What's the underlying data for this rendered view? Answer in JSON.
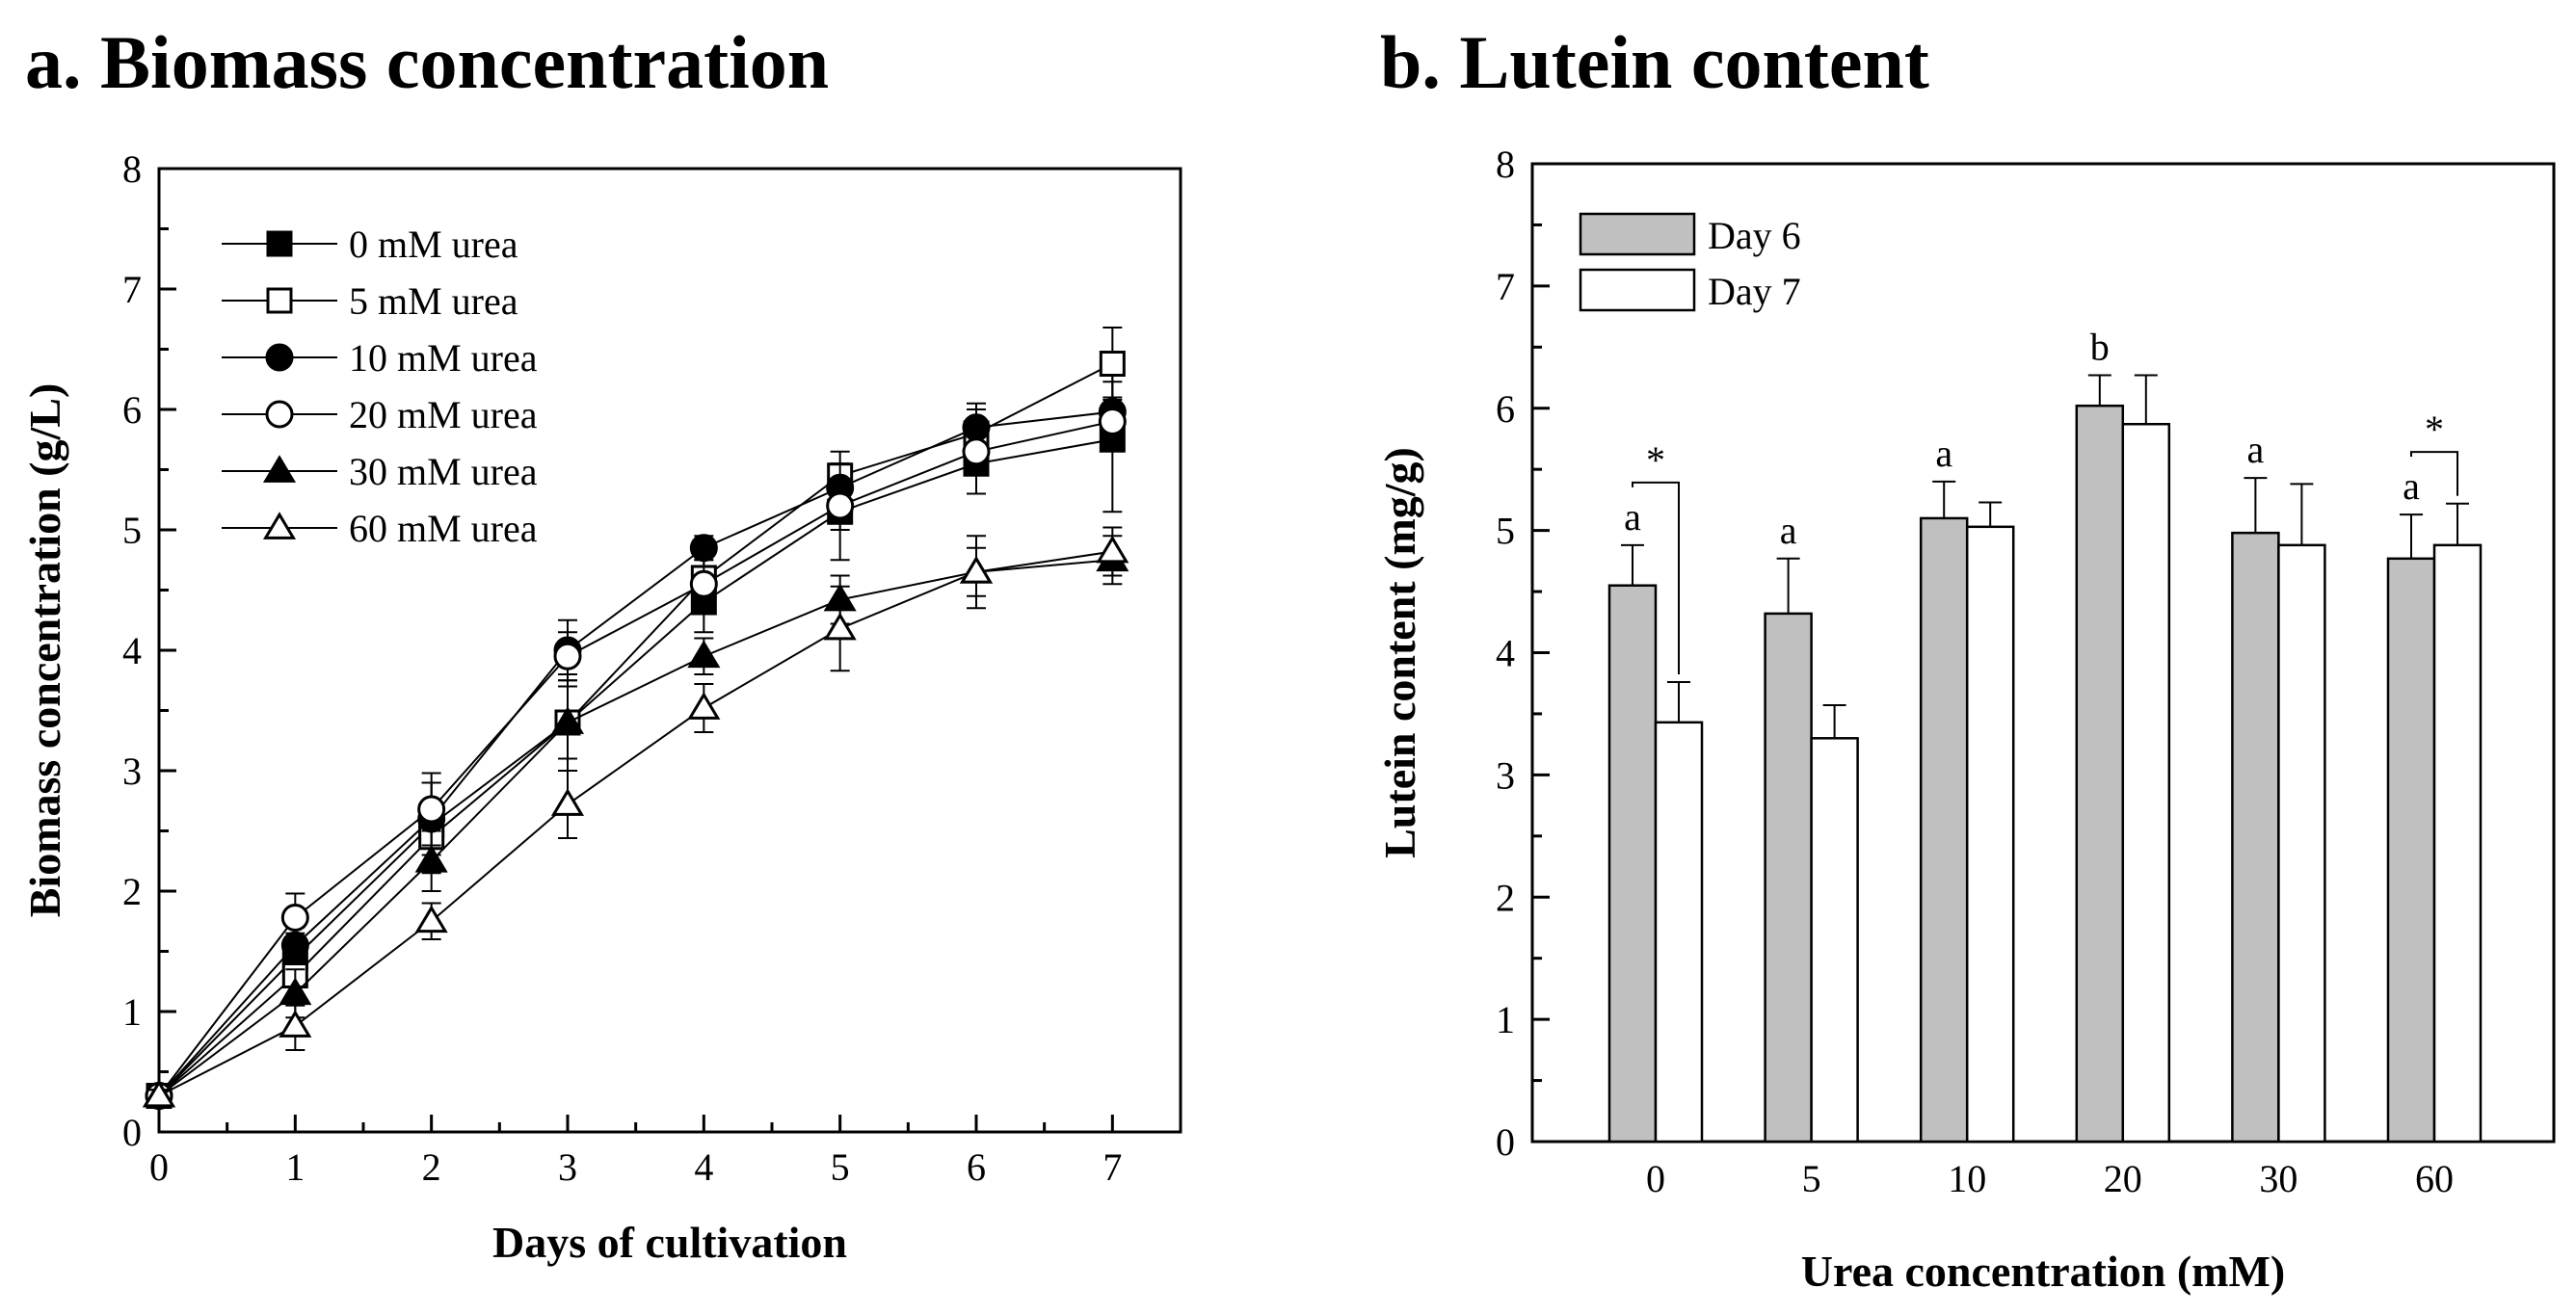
{
  "chart_data": [
    {
      "id": "a",
      "type": "line",
      "title": "a. Biomass concentration",
      "xlabel": "Days of cultivation",
      "ylabel": "Biomass concentration (g/L)",
      "xlim": [
        0,
        7.5
      ],
      "ylim": [
        0,
        8
      ],
      "xticks": [
        "0",
        "1",
        "2",
        "3",
        "4",
        "5",
        "6",
        "7"
      ],
      "yticks": [
        "0",
        "1",
        "2",
        "3",
        "4",
        "5",
        "6",
        "7",
        "8"
      ],
      "legend_position": "top-left",
      "x": [
        0,
        1,
        2,
        3,
        4,
        5,
        6,
        7
      ],
      "series": [
        {
          "name": "0 mM urea",
          "marker": "square",
          "filled": true,
          "values": [
            0.3,
            1.45,
            2.55,
            3.4,
            4.4,
            5.15,
            5.55,
            5.75
          ],
          "errors": [
            0.05,
            0.2,
            0.35,
            0.3,
            0.25,
            0.4,
            0.25,
            0.6
          ]
        },
        {
          "name": "5 mM urea",
          "marker": "square",
          "filled": false,
          "values": [
            0.3,
            1.3,
            2.45,
            3.4,
            4.6,
            5.45,
            5.8,
            6.38
          ],
          "errors": [
            0.05,
            0.25,
            0.3,
            0.4,
            0.25,
            0.2,
            0.2,
            0.3
          ]
        },
        {
          "name": "10 mM urea",
          "marker": "circle",
          "filled": true,
          "values": [
            0.3,
            1.55,
            2.6,
            4.0,
            4.85,
            5.35,
            5.85,
            5.98
          ],
          "errors": [
            0.05,
            0.15,
            0.3,
            0.25,
            0.1,
            0.2,
            0.2,
            0.25
          ]
        },
        {
          "name": "20 mM urea",
          "marker": "circle",
          "filled": false,
          "values": [
            0.3,
            1.78,
            2.68,
            3.95,
            4.55,
            5.2,
            5.65,
            5.9
          ],
          "errors": [
            0.05,
            0.2,
            0.3,
            0.2,
            0.2,
            0.2,
            0.15,
            0.2
          ]
        },
        {
          "name": "30 mM urea",
          "marker": "triangle",
          "filled": true,
          "values": [
            0.3,
            1.15,
            2.25,
            3.4,
            3.95,
            4.42,
            4.65,
            4.75
          ],
          "errors": [
            0.05,
            0.2,
            0.25,
            0.4,
            0.15,
            0.2,
            0.2,
            0.2
          ]
        },
        {
          "name": "60 mM urea",
          "marker": "triangle",
          "filled": false,
          "values": [
            0.3,
            0.88,
            1.75,
            2.72,
            3.52,
            4.18,
            4.65,
            4.82
          ],
          "errors": [
            0.05,
            0.2,
            0.15,
            0.28,
            0.2,
            0.35,
            0.3,
            0.2
          ]
        }
      ]
    },
    {
      "id": "b",
      "type": "bar",
      "title": "b. Lutein content",
      "xlabel": "Urea concentration (mM)",
      "ylabel": "Lutein content (mg/g)",
      "ylim": [
        0,
        8
      ],
      "yticks": [
        "0",
        "1",
        "2",
        "3",
        "4",
        "5",
        "6",
        "7",
        "8"
      ],
      "categories": [
        "0",
        "5",
        "10",
        "20",
        "30",
        "60"
      ],
      "legend_position": "top-left",
      "series": [
        {
          "name": "Day 6",
          "color": "#c0c0c0",
          "values": [
            4.55,
            4.32,
            5.1,
            6.02,
            4.98,
            4.77
          ],
          "errors": [
            0.33,
            0.45,
            0.3,
            0.25,
            0.45,
            0.36
          ]
        },
        {
          "name": "Day 7",
          "color": "#ffffff",
          "values": [
            3.43,
            3.3,
            5.03,
            5.87,
            4.88,
            4.88
          ],
          "errors": [
            0.33,
            0.27,
            0.2,
            0.4,
            0.5,
            0.34
          ]
        }
      ],
      "letter_labels": [
        "a",
        "a",
        "a",
        "b",
        "a",
        "a"
      ],
      "significance_marks": [
        {
          "category": "0",
          "label": "*"
        },
        {
          "category": "60",
          "label": "*"
        }
      ]
    }
  ]
}
